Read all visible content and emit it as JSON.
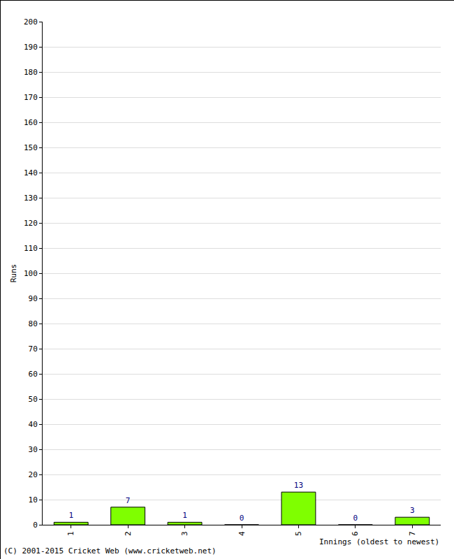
{
  "chart_data": {
    "type": "bar",
    "x_label": "Innings (oldest to newest)",
    "y_label": "Runs",
    "categories": [
      "1",
      "2",
      "3",
      "4",
      "5",
      "6",
      "7"
    ],
    "values": [
      1,
      7,
      1,
      0,
      13,
      0,
      3
    ],
    "color": "#7fff00",
    "ylim": [
      0,
      200
    ],
    "yticks": [
      0,
      10,
      20,
      30,
      40,
      50,
      60,
      70,
      80,
      90,
      100,
      110,
      120,
      130,
      140,
      150,
      160,
      170,
      180,
      190,
      200
    ],
    "grid": true,
    "data_labels": true,
    "annotations": [
      "(C) 2001-2015 Cricket Web (www.cricketweb.net)"
    ]
  }
}
